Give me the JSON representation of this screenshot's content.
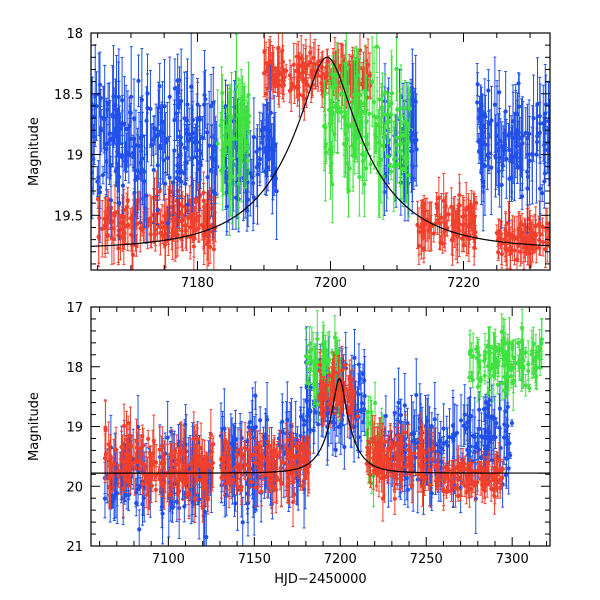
{
  "colors": {
    "red": "#f0402d",
    "blue": "#2050e8",
    "green": "#40e040",
    "model": "#000000",
    "axis": "#000000"
  },
  "chart_data": [
    {
      "id": "top",
      "type": "scatter",
      "title": "",
      "ylabel": "Magnitude",
      "xlabel": "",
      "xlim": [
        7164,
        7233
      ],
      "ylim": [
        18,
        19.95
      ],
      "y_inverted": true,
      "xticks": [
        7180,
        7200,
        7220
      ],
      "xtick_labels": [
        "7180",
        "7200",
        "7220"
      ],
      "yticks": [
        18,
        18.5,
        19,
        19.5
      ],
      "ytick_labels": [
        "18",
        "18.5",
        "19",
        "19.5"
      ],
      "series": [
        {
          "name": "red",
          "color": "#f0402d",
          "segments": [
            [
              7165,
              7183,
              19.55,
              0.22
            ],
            [
              7190,
              7206,
              18.35,
              0.18
            ],
            [
              7213,
              7222,
              19.55,
              0.2
            ],
            [
              7225,
              7233,
              19.7,
              0.15
            ]
          ]
        },
        {
          "name": "blue",
          "color": "#2050e8",
          "segments": [
            [
              7164,
              7183,
              18.9,
              0.45
            ],
            [
              7184,
              7192,
              19.0,
              0.4
            ],
            [
              7208,
              7213,
              18.95,
              0.4
            ],
            [
              7222,
              7233,
              18.9,
              0.4
            ]
          ]
        },
        {
          "name": "green",
          "color": "#40e040",
          "segments": [
            [
              7183,
              7188,
              18.9,
              0.45
            ],
            [
              7199,
              7212,
              18.8,
              0.45
            ]
          ]
        }
      ],
      "model_curve": {
        "color": "#000000",
        "baseline": 19.78,
        "peak_mag": 18.2,
        "t0": 7199.5,
        "tE": 13
      }
    },
    {
      "id": "bottom",
      "type": "scatter",
      "title": "",
      "ylabel": "Magnitude",
      "xlabel": "HJD−2450000",
      "xlim": [
        7055,
        7322
      ],
      "ylim": [
        17,
        21
      ],
      "y_inverted": true,
      "xticks": [
        7100,
        7150,
        7200,
        7250,
        7300
      ],
      "xtick_labels": [
        "7100",
        "7150",
        "7200",
        "7250",
        "7300"
      ],
      "yticks": [
        17,
        18,
        19,
        20,
        21
      ],
      "ytick_labels": [
        "17",
        "18",
        "19",
        "20",
        "21"
      ],
      "series": [
        {
          "name": "blue",
          "color": "#2050e8",
          "segments": [
            [
              7063,
              7090,
              19.8,
              0.6
            ],
            [
              7095,
              7125,
              19.8,
              0.7
            ],
            [
              7130,
              7180,
              19.6,
              0.7
            ],
            [
              7180,
              7215,
              18.6,
              0.7
            ],
            [
              7225,
              7280,
              19.4,
              0.7
            ],
            [
              7280,
              7300,
              19.2,
              0.6
            ]
          ]
        },
        {
          "name": "green",
          "color": "#40e040",
          "segments": [
            [
              7180,
              7200,
              18.0,
              0.5
            ],
            [
              7215,
              7225,
              19.3,
              0.6
            ],
            [
              7275,
              7318,
              17.9,
              0.45
            ]
          ]
        },
        {
          "name": "red",
          "color": "#f0402d",
          "segments": [
            [
              7063,
              7090,
              19.6,
              0.5
            ],
            [
              7090,
              7127,
              19.7,
              0.5
            ],
            [
              7130,
              7182,
              19.65,
              0.45
            ],
            [
              7188,
              7210,
              18.4,
              0.4
            ],
            [
              7215,
              7255,
              19.6,
              0.45
            ],
            [
              7255,
              7295,
              19.85,
              0.3
            ]
          ]
        }
      ],
      "model_curve": {
        "color": "#000000",
        "baseline": 19.78,
        "peak_mag": 18.2,
        "t0": 7199.5,
        "tE": 13
      }
    }
  ]
}
